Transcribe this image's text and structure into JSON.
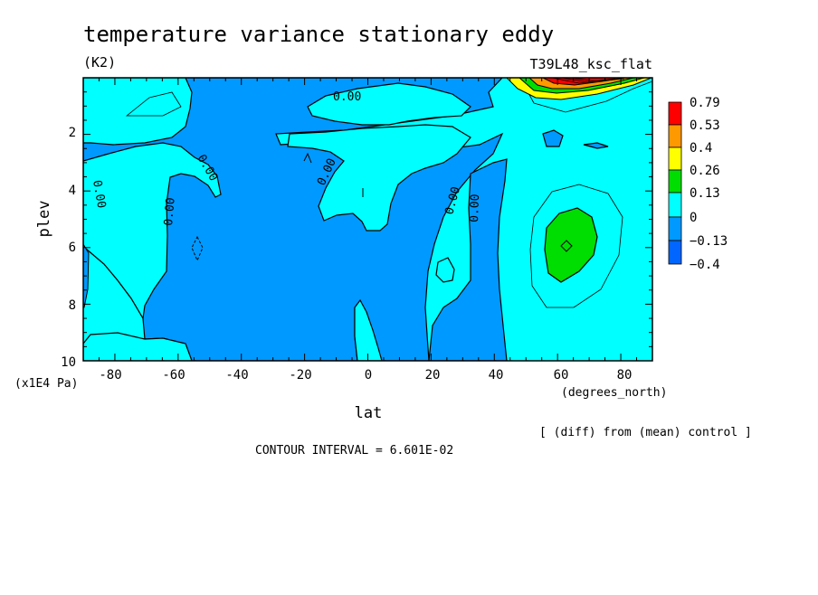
{
  "chart_data": {
    "type": "contour",
    "title": "temperature variance stationary eddy",
    "units": "(K2)",
    "run_label": "T39L48_ksc_flat",
    "xlabel": "lat",
    "x_units": "(degrees_north)",
    "ylabel": "plev",
    "y_units": "(x1E4 Pa)",
    "x_ticks": [
      "-80",
      "-60",
      "-40",
      "-20",
      "0",
      "20",
      "40",
      "60",
      "80"
    ],
    "y_ticks": [
      "2",
      "4",
      "6",
      "8",
      "10"
    ],
    "xlim": [
      -90,
      90
    ],
    "ylim": [
      10,
      0
    ],
    "diff_note": "[ (diff) from (mean) control ]",
    "contour_interval": "CONTOUR INTERVAL = 6.601E-02",
    "contour_labels": [
      "0.00",
      "0.00",
      "0.00",
      "0.00",
      "0.00",
      "0.00",
      "0.00",
      "0.00",
      "0.00"
    ],
    "legend": {
      "labels": [
        "0.79",
        "0.53",
        "0.4",
        "0.26",
        "0.13",
        "0",
        "−0.13",
        "−0.4"
      ],
      "colors": [
        "#ff0000",
        "#ff9900",
        "#ffff00",
        "#00dd00",
        "#00ffff",
        "#0099ff",
        "#0066ff"
      ]
    },
    "features": [
      {
        "kind": "max",
        "lat": 61,
        "plev": 6.0,
        "level": "0.13 to 0.26"
      },
      {
        "kind": "max",
        "lat": 68,
        "plev": 0.0,
        "level": "0.79"
      }
    ],
    "grid": false
  }
}
